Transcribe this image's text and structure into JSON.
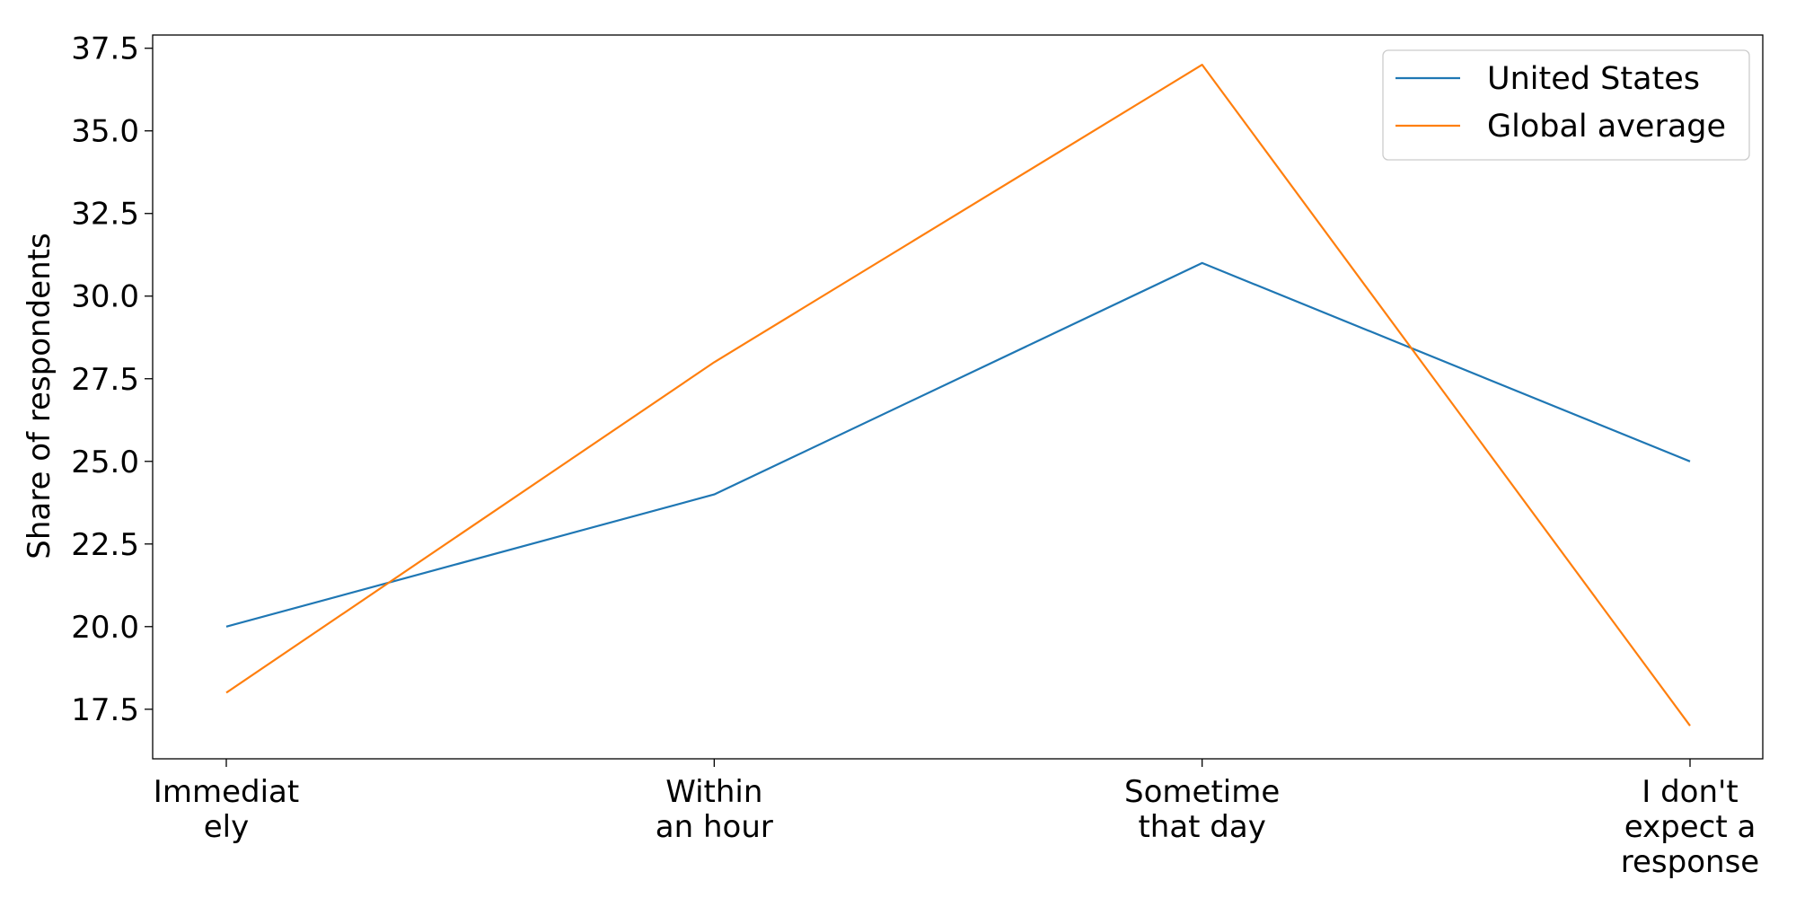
{
  "chart_data": {
    "type": "line",
    "title": "",
    "xlabel": "",
    "ylabel": "Share of respondents",
    "categories": [
      [
        "Immediat",
        "ely"
      ],
      [
        "Within",
        "an hour"
      ],
      [
        "Sometime",
        "that day"
      ],
      [
        "I don't",
        "expect a",
        "response"
      ]
    ],
    "series": [
      {
        "name": "United States",
        "color": "#1f77b4",
        "values": [
          20,
          24,
          31,
          25
        ]
      },
      {
        "name": "Global average",
        "color": "#ff7f0e",
        "values": [
          18,
          28,
          37,
          17
        ]
      }
    ],
    "ylim": [
      16,
      37.9
    ],
    "yticks": [
      "17.5",
      "20.0",
      "22.5",
      "25.0",
      "27.5",
      "30.0",
      "32.5",
      "35.0",
      "37.5"
    ],
    "grid": false,
    "legend_position": "top-right"
  }
}
